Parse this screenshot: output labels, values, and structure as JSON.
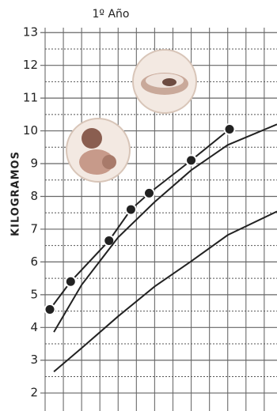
{
  "chart_data": {
    "type": "line",
    "title": "1º Año",
    "y_label": "KILOGRAMOS",
    "xlim": [
      0,
      12.7
    ],
    "xticks": [
      0,
      1,
      2,
      3,
      4,
      5,
      6,
      7,
      8,
      9,
      10,
      11,
      12
    ],
    "ylim": [
      1.45,
      13.15
    ],
    "yticks": [
      2,
      3,
      4,
      5,
      6,
      7,
      8,
      9,
      10,
      11,
      12,
      13
    ],
    "y_minor_ticks": [
      2.5,
      3.5,
      4.5,
      5.5,
      6.5,
      7.5,
      8.5,
      9.5,
      10.5,
      11.5,
      12.5
    ],
    "grid": true,
    "series": [
      {
        "color": "#222222",
        "markers": true,
        "x": [
          0.26,
          1.4,
          3.5,
          4.7,
          5.7,
          8,
          10.1
        ],
        "values": [
          4.55,
          5.4,
          6.65,
          7.6,
          8.1,
          9.1,
          10.05
        ]
      },
      {
        "color": "#222222",
        "markers": false,
        "x": [
          0.48,
          2,
          4,
          6,
          8,
          10,
          12.7
        ],
        "values": [
          3.86,
          5.3,
          6.75,
          7.83,
          8.8,
          9.57,
          10.2
        ]
      },
      {
        "color": "#222222",
        "markers": false,
        "x": [
          0.48,
          2,
          4,
          6,
          8,
          10,
          12.7
        ],
        "values": [
          2.65,
          3.37,
          4.34,
          5.25,
          6.02,
          6.82,
          7.54
        ]
      }
    ]
  }
}
